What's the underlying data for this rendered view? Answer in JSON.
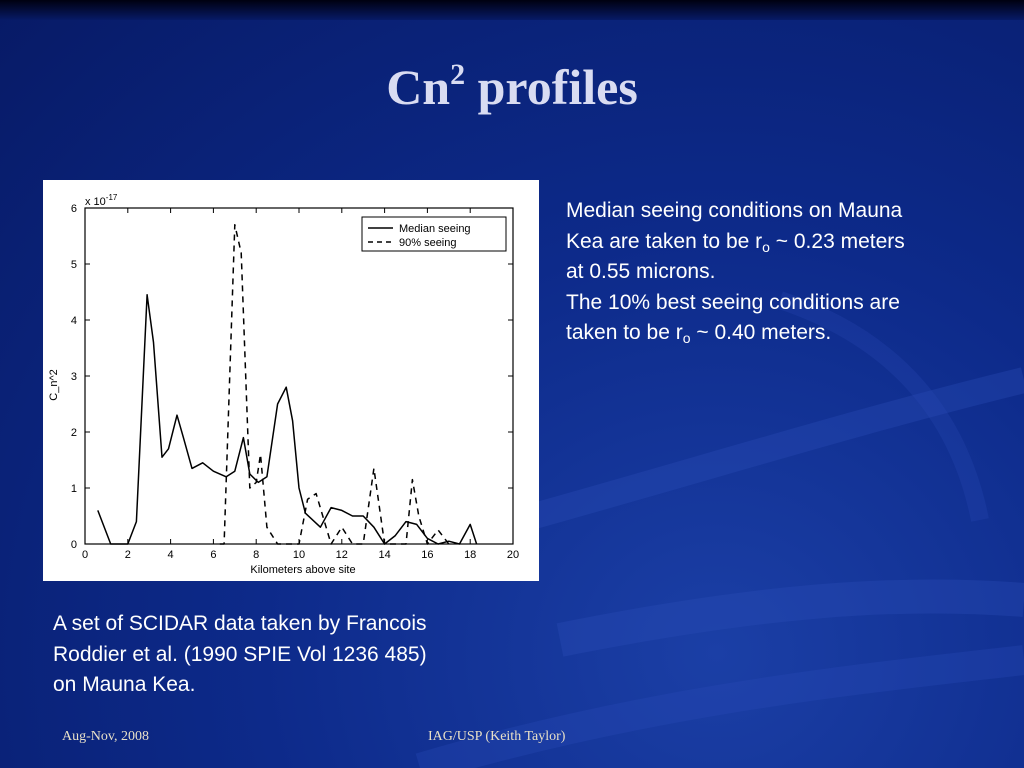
{
  "slide": {
    "title": "Cn",
    "title_sup": "2",
    "title_rest": " profiles",
    "side_text": {
      "line1": "Median seeing conditions on Mauna",
      "line2_a": "Kea are taken to be r",
      "line2_sub": "o",
      "line2_b": " ~ 0.23 meters",
      "line3": "at 0.55 microns.",
      "line4": "The 10% best seeing conditions are",
      "line5_a": "taken to be r",
      "line5_sub": "o",
      "line5_b": " ~ 0.40 meters."
    },
    "caption": {
      "line1": "A set of SCIDAR data taken by Francois",
      "line2": "Roddier et al. (1990 SPIE Vol 1236 485)",
      "line3": "on Mauna Kea."
    },
    "footer_left": "Aug-Nov, 2008",
    "footer_center": "IAG/USP (Keith Taylor)"
  },
  "chart_data": {
    "type": "line",
    "xlabel": "Kilometers above site",
    "ylabel": "C_n^2",
    "y_multiplier": "x 10^-17",
    "xlim": [
      0,
      20
    ],
    "ylim": [
      0,
      6
    ],
    "xticks": [
      0,
      2,
      4,
      6,
      8,
      10,
      12,
      14,
      16,
      18,
      20
    ],
    "yticks": [
      0,
      1,
      2,
      3,
      4,
      5,
      6
    ],
    "legend_position": "top-right",
    "series": [
      {
        "name": "Median seeing",
        "style": "solid",
        "x": [
          0.6,
          1.2,
          2.0,
          2.4,
          2.9,
          3.2,
          3.6,
          3.9,
          4.3,
          4.6,
          5.0,
          5.5,
          6.0,
          6.6,
          7.0,
          7.4,
          7.7,
          8.1,
          8.5,
          9.0,
          9.4,
          9.7,
          10.0,
          10.3,
          11.0,
          11.5,
          12.0,
          12.5,
          13.0,
          13.5,
          14.0,
          14.5,
          15.0,
          15.5,
          16.0,
          16.5,
          17.0,
          17.5,
          18.0,
          18.3
        ],
        "y": [
          0.6,
          0.0,
          0.0,
          0.4,
          4.45,
          3.6,
          1.55,
          1.7,
          2.3,
          1.9,
          1.35,
          1.45,
          1.3,
          1.2,
          1.3,
          1.9,
          1.25,
          1.1,
          1.2,
          2.5,
          2.8,
          2.2,
          1.0,
          0.55,
          0.3,
          0.65,
          0.6,
          0.5,
          0.5,
          0.3,
          0.0,
          0.15,
          0.4,
          0.35,
          0.1,
          0.0,
          0.05,
          0.0,
          0.35,
          0.0
        ]
      },
      {
        "name": "90% seeing",
        "style": "dashed",
        "x": [
          6.3,
          6.5,
          7.0,
          7.3,
          7.7,
          8.0,
          8.2,
          8.5,
          9.0,
          9.6,
          10.0,
          10.4,
          10.8,
          11.5,
          12.0,
          12.5,
          13.0,
          13.5,
          14.0,
          14.5,
          15.0,
          15.3,
          15.6,
          16.0,
          16.5,
          17.0
        ],
        "y": [
          0.0,
          0.0,
          5.7,
          5.2,
          1.0,
          1.1,
          1.6,
          0.3,
          0.0,
          0.0,
          0.0,
          0.8,
          0.9,
          0.0,
          0.3,
          0.0,
          0.0,
          1.35,
          0.0,
          0.0,
          0.0,
          1.15,
          0.5,
          0.0,
          0.25,
          0.0
        ]
      }
    ]
  }
}
